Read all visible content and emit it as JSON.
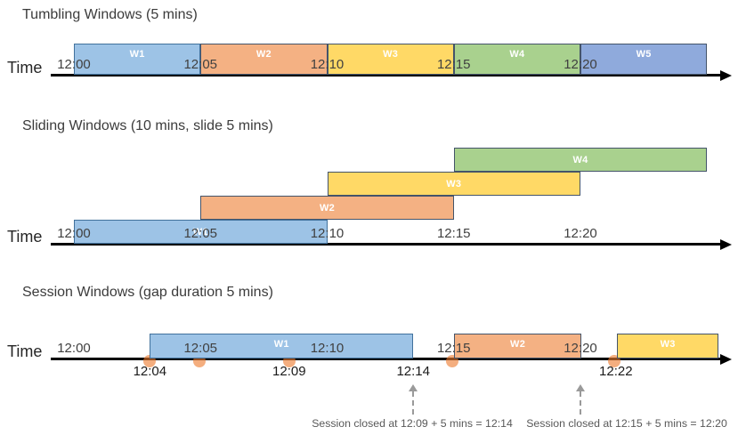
{
  "diagram": {
    "time_axis_unit": "minutes after 12:00",
    "sections": [
      {
        "title": "Tumbling Windows (5 mins)",
        "time_label": "Time",
        "ticks": [
          {
            "label": "12:00",
            "min": 0
          },
          {
            "label": "12:05",
            "min": 5
          },
          {
            "label": "12:10",
            "min": 10
          },
          {
            "label": "12:15",
            "min": 15
          },
          {
            "label": "12:20",
            "min": 20
          }
        ],
        "windows": [
          {
            "label": "W1",
            "start_min": 0,
            "end_min": 5,
            "fill": "#9DC3E6",
            "border": "#41719C"
          },
          {
            "label": "W2",
            "start_min": 5,
            "end_min": 10,
            "fill": "#F4B183",
            "border": "#44546A"
          },
          {
            "label": "W3",
            "start_min": 10,
            "end_min": 15,
            "fill": "#FFD966",
            "border": "#44546A"
          },
          {
            "label": "W4",
            "start_min": 15,
            "end_min": 20,
            "fill": "#A9D18E",
            "border": "#44546A"
          },
          {
            "label": "W5",
            "start_min": 20,
            "end_min": 25,
            "fill": "#8FAADC",
            "border": "#44546A"
          }
        ]
      },
      {
        "title": "Sliding Windows (10 mins, slide 5 mins)",
        "time_label": "Time",
        "ticks": [
          {
            "label": "12:00",
            "min": 0
          },
          {
            "label": "12:05",
            "min": 5
          },
          {
            "label": "12:10",
            "min": 10
          },
          {
            "label": "12:15",
            "min": 15
          },
          {
            "label": "12:20",
            "min": 20
          }
        ],
        "windows": [
          {
            "label": "W1",
            "start_min": 0,
            "end_min": 10,
            "row": 0,
            "fill": "#9DC3E6",
            "border": "#41719C"
          },
          {
            "label": "W2",
            "start_min": 5,
            "end_min": 15,
            "row": 1,
            "fill": "#F4B183",
            "border": "#44546A"
          },
          {
            "label": "W3",
            "start_min": 10,
            "end_min": 20,
            "row": 2,
            "fill": "#FFD966",
            "border": "#44546A"
          },
          {
            "label": "W4",
            "start_min": 15,
            "end_min": 25,
            "row": 3,
            "fill": "#A9D18E",
            "border": "#44546A"
          }
        ]
      },
      {
        "title": "Session Windows (gap duration 5 mins)",
        "time_label": "Time",
        "ticks": [
          {
            "label": "12:00",
            "min": 0
          },
          {
            "label": "12:05",
            "min": 5
          },
          {
            "label": "12:10",
            "min": 10
          },
          {
            "label": "12:15",
            "min": 15
          },
          {
            "label": "12:20",
            "min": 20
          }
        ],
        "windows": [
          {
            "label": "W1",
            "start_min": 3,
            "end_min": 13.4,
            "fill": "#9DC3E6",
            "border": "#41719C"
          },
          {
            "label": "W2",
            "start_min": 15,
            "end_min": 20.05,
            "fill": "#F4B183",
            "border": "#44546A"
          },
          {
            "label": "W3",
            "start_min": 21.45,
            "end_min": 25.45,
            "fill": "#FFD966",
            "border": "#44546A"
          }
        ],
        "events": {
          "dot_color": "rgba(237,125,49,0.62)",
          "times_min": [
            3,
            4.95,
            8.5,
            14.95,
            21.35
          ]
        },
        "event_labels": [
          {
            "label": "12:04",
            "min": 3
          },
          {
            "label": "12:09",
            "min": 8.5
          },
          {
            "label": "12:14",
            "min": 13.4
          },
          {
            "label": "12:22",
            "min": 21.4
          }
        ],
        "callouts": [
          {
            "text": "Session closed at 12:09 + 5 mins = 12:14",
            "arrow_min": 13.4
          },
          {
            "text": "Session closed at 12:15 + 5 mins = 12:20",
            "arrow_min": 20
          }
        ]
      }
    ]
  }
}
